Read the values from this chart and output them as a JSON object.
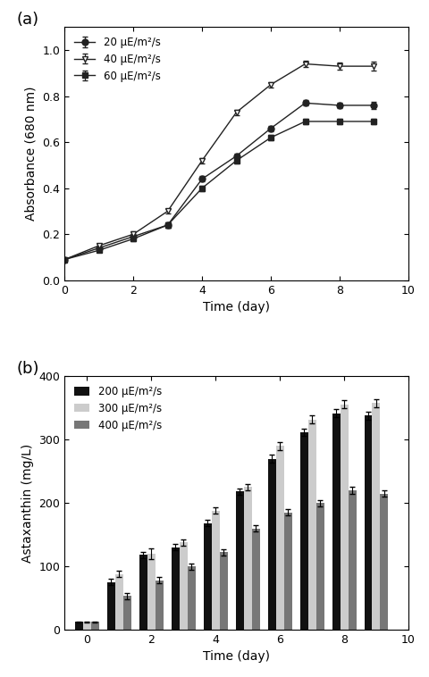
{
  "panel_a": {
    "xlabel": "Time (day)",
    "ylabel": "Absorbance (680 nm)",
    "xlim": [
      0,
      10
    ],
    "ylim": [
      0.0,
      1.1
    ],
    "yticks": [
      0.0,
      0.2,
      0.4,
      0.6,
      0.8,
      1.0
    ],
    "xticks": [
      0,
      2,
      4,
      6,
      8,
      10
    ],
    "series": [
      {
        "label": "20 μE/m²/s",
        "marker": "o",
        "fillstyle": "full",
        "color": "#222222",
        "x": [
          0,
          1,
          2,
          3,
          4,
          5,
          6,
          7,
          8,
          9
        ],
        "y": [
          0.09,
          0.14,
          0.19,
          0.24,
          0.44,
          0.54,
          0.66,
          0.77,
          0.76,
          0.76
        ],
        "yerr": [
          0.005,
          0.007,
          0.012,
          0.01,
          0.012,
          0.012,
          0.012,
          0.012,
          0.012,
          0.015
        ]
      },
      {
        "label": "40 μE/m²/s",
        "marker": "v",
        "fillstyle": "none",
        "color": "#222222",
        "x": [
          0,
          1,
          2,
          3,
          4,
          5,
          6,
          7,
          8,
          9
        ],
        "y": [
          0.09,
          0.15,
          0.2,
          0.3,
          0.52,
          0.73,
          0.85,
          0.94,
          0.93,
          0.93
        ],
        "yerr": [
          0.005,
          0.007,
          0.012,
          0.01,
          0.012,
          0.012,
          0.012,
          0.015,
          0.015,
          0.02
        ]
      },
      {
        "label": "60 μE/m²/s",
        "marker": "s",
        "fillstyle": "full",
        "color": "#222222",
        "x": [
          0,
          1,
          2,
          3,
          4,
          5,
          6,
          7,
          8,
          9
        ],
        "y": [
          0.09,
          0.13,
          0.18,
          0.24,
          0.4,
          0.52,
          0.62,
          0.69,
          0.69,
          0.69
        ],
        "yerr": [
          0.005,
          0.007,
          0.01,
          0.01,
          0.012,
          0.012,
          0.012,
          0.012,
          0.012,
          0.012
        ]
      }
    ]
  },
  "panel_b": {
    "xlabel": "Time (day)",
    "ylabel": "Astaxanthin (mg/L)",
    "xlim": [
      -0.6,
      10
    ],
    "ylim": [
      0,
      400
    ],
    "yticks": [
      0,
      100,
      200,
      300,
      400
    ],
    "xticks": [
      0,
      2,
      4,
      6,
      8,
      10
    ],
    "bar_width": 0.25,
    "series": [
      {
        "label": "200 μE/m²/s",
        "color": "#111111",
        "x": [
          0,
          1,
          2,
          3,
          4,
          5,
          6,
          7,
          8,
          9
        ],
        "y": [
          12,
          75,
          118,
          130,
          168,
          218,
          270,
          312,
          342,
          338
        ],
        "yerr": [
          1,
          5,
          5,
          5,
          5,
          5,
          6,
          6,
          6,
          6
        ]
      },
      {
        "label": "300 μE/m²/s",
        "color": "#cccccc",
        "x": [
          0,
          1,
          2,
          3,
          4,
          5,
          6,
          7,
          8,
          9
        ],
        "y": [
          12,
          88,
          120,
          138,
          188,
          225,
          290,
          332,
          356,
          358
        ],
        "yerr": [
          1,
          5,
          8,
          5,
          5,
          5,
          6,
          6,
          6,
          6
        ]
      },
      {
        "label": "400 μE/m²/s",
        "color": "#777777",
        "x": [
          0,
          1,
          2,
          3,
          4,
          5,
          6,
          7,
          8,
          9
        ],
        "y": [
          12,
          53,
          78,
          100,
          122,
          160,
          185,
          200,
          220,
          215
        ],
        "yerr": [
          1,
          5,
          5,
          5,
          5,
          5,
          5,
          5,
          5,
          5
        ]
      }
    ]
  }
}
